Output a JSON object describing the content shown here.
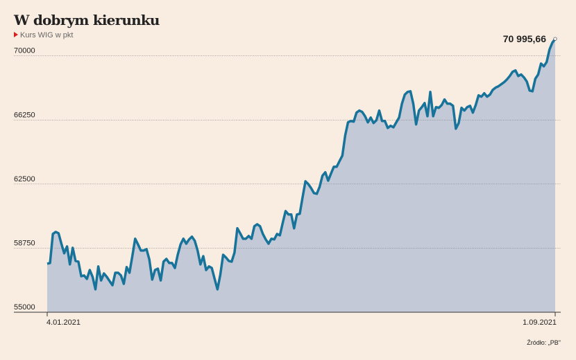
{
  "chart_data": {
    "type": "area",
    "title": "W dobrym kierunku",
    "subtitle": "Kurs WIG w pkt",
    "source": "Źródło: „PB\"",
    "categories": [
      "4.01.2021",
      null,
      null,
      null,
      null,
      null,
      null,
      null,
      null,
      null,
      null,
      null,
      null,
      null,
      null,
      null,
      null,
      null,
      null,
      null,
      null,
      null,
      null,
      null,
      null,
      null,
      null,
      null,
      null,
      null,
      null,
      null,
      null,
      null,
      null,
      null,
      null,
      null,
      null,
      null,
      null,
      null,
      null,
      null,
      null,
      null,
      null,
      null,
      null,
      null,
      null,
      null,
      null,
      null,
      null,
      null,
      null,
      null,
      null,
      null,
      null,
      null,
      null,
      null,
      null,
      null,
      null,
      null,
      null,
      null,
      null,
      null,
      null,
      null,
      null,
      null,
      null,
      null,
      null,
      null,
      null,
      null,
      null,
      null,
      null,
      null,
      null,
      null,
      null,
      null,
      null,
      null,
      null,
      null,
      null,
      null,
      null,
      null,
      null,
      null,
      null,
      null,
      null,
      null,
      null,
      null,
      null,
      null,
      null,
      null,
      null,
      null,
      null,
      null,
      null,
      null,
      null,
      null,
      null,
      null,
      null,
      null,
      null,
      null,
      null,
      null,
      null,
      null,
      null,
      null,
      null,
      null,
      null,
      null,
      null,
      null,
      null,
      null,
      null,
      null,
      null,
      null,
      null,
      null,
      null,
      null,
      null,
      null,
      null,
      null,
      null,
      null,
      null,
      null,
      null,
      null,
      null,
      null,
      null,
      null,
      null,
      null,
      null,
      null,
      null,
      null,
      null,
      null,
      null,
      null,
      null,
      null,
      null,
      null,
      null,
      null,
      null,
      null,
      null,
      "1.09.2021"
    ],
    "values": [
      57840,
      57880,
      59580,
      59700,
      59620,
      59010,
      58450,
      58850,
      57800,
      58770,
      58000,
      57960,
      57110,
      57150,
      56950,
      57470,
      57070,
      56340,
      57680,
      56860,
      57270,
      57070,
      56820,
      56580,
      57310,
      57310,
      57150,
      56660,
      57640,
      57310,
      58280,
      59300,
      58970,
      58610,
      58610,
      58690,
      58080,
      56910,
      57470,
      57550,
      56860,
      57960,
      58120,
      57880,
      57880,
      57590,
      58360,
      58970,
      59300,
      59010,
      59260,
      59420,
      59180,
      58610,
      57800,
      58280,
      57470,
      57680,
      57590,
      56950,
      56340,
      57190,
      58360,
      58200,
      58000,
      57960,
      58490,
      59910,
      59620,
      59300,
      59300,
      59460,
      59300,
      60030,
      60150,
      60030,
      59580,
      59260,
      59010,
      59300,
      59260,
      59580,
      59500,
      60230,
      60920,
      60720,
      60720,
      59910,
      60720,
      60760,
      61730,
      62660,
      62500,
      62260,
      61970,
      61930,
      62340,
      62990,
      63190,
      62700,
      63110,
      63510,
      63510,
      63840,
      64160,
      65340,
      66110,
      66190,
      66150,
      66680,
      66800,
      66720,
      66470,
      66110,
      66390,
      66070,
      66230,
      66800,
      66190,
      66190,
      65780,
      65910,
      65820,
      66110,
      66390,
      67200,
      67730,
      67890,
      67930,
      67200,
      65990,
      66800,
      67000,
      67240,
      66470,
      67890,
      66470,
      67000,
      66960,
      67120,
      67450,
      67200,
      67200,
      67080,
      65740,
      66070,
      66960,
      66800,
      67000,
      67080,
      66680,
      67120,
      67690,
      67610,
      67810,
      67610,
      67730,
      68010,
      68140,
      68220,
      68340,
      68460,
      68620,
      68820,
      69070,
      69150,
      68820,
      68910,
      68740,
      68500,
      67970,
      67930,
      68660,
      68910,
      69550,
      69390,
      69640,
      70370,
      70770,
      70995.66
    ],
    "value_labels": [
      null,
      null,
      null,
      null,
      null,
      null,
      null,
      null,
      null,
      null,
      null,
      null,
      null,
      null,
      null,
      null,
      null,
      null,
      null,
      null,
      null,
      null,
      null,
      null,
      null,
      null,
      null,
      null,
      null,
      null,
      null,
      null,
      null,
      null,
      null,
      null,
      null,
      null,
      null,
      null,
      null,
      null,
      null,
      null,
      null,
      null,
      null,
      null,
      null,
      null,
      null,
      null,
      null,
      null,
      null,
      null,
      null,
      null,
      null,
      null,
      null,
      null,
      null,
      null,
      null,
      null,
      null,
      null,
      null,
      null,
      null,
      null,
      null,
      null,
      null,
      null,
      null,
      null,
      null,
      null,
      null,
      null,
      null,
      null,
      null,
      null,
      null,
      null,
      null,
      null,
      null,
      null,
      null,
      null,
      null,
      null,
      null,
      null,
      null,
      null,
      null,
      null,
      null,
      null,
      null,
      null,
      null,
      null,
      null,
      null,
      null,
      null,
      null,
      null,
      null,
      null,
      null,
      null,
      null,
      null,
      null,
      null,
      null,
      null,
      null,
      null,
      null,
      null,
      null,
      null,
      null,
      null,
      null,
      null,
      null,
      null,
      null,
      null,
      null,
      null,
      null,
      null,
      null,
      null,
      null,
      null,
      null,
      null,
      null,
      null,
      null,
      null,
      null,
      null,
      null,
      null,
      null,
      null,
      null,
      null,
      null,
      null,
      null,
      null,
      null,
      null,
      null,
      null,
      null,
      null,
      null,
      null,
      null,
      null,
      null,
      null,
      null,
      null,
      null,
      "70 995,66"
    ],
    "color": "#17739a",
    "fill": "#c3c9d7",
    "ylim": [
      55000,
      71000
    ],
    "yticks": [
      55000,
      58750,
      62500,
      66250,
      70000
    ],
    "grid": true
  }
}
